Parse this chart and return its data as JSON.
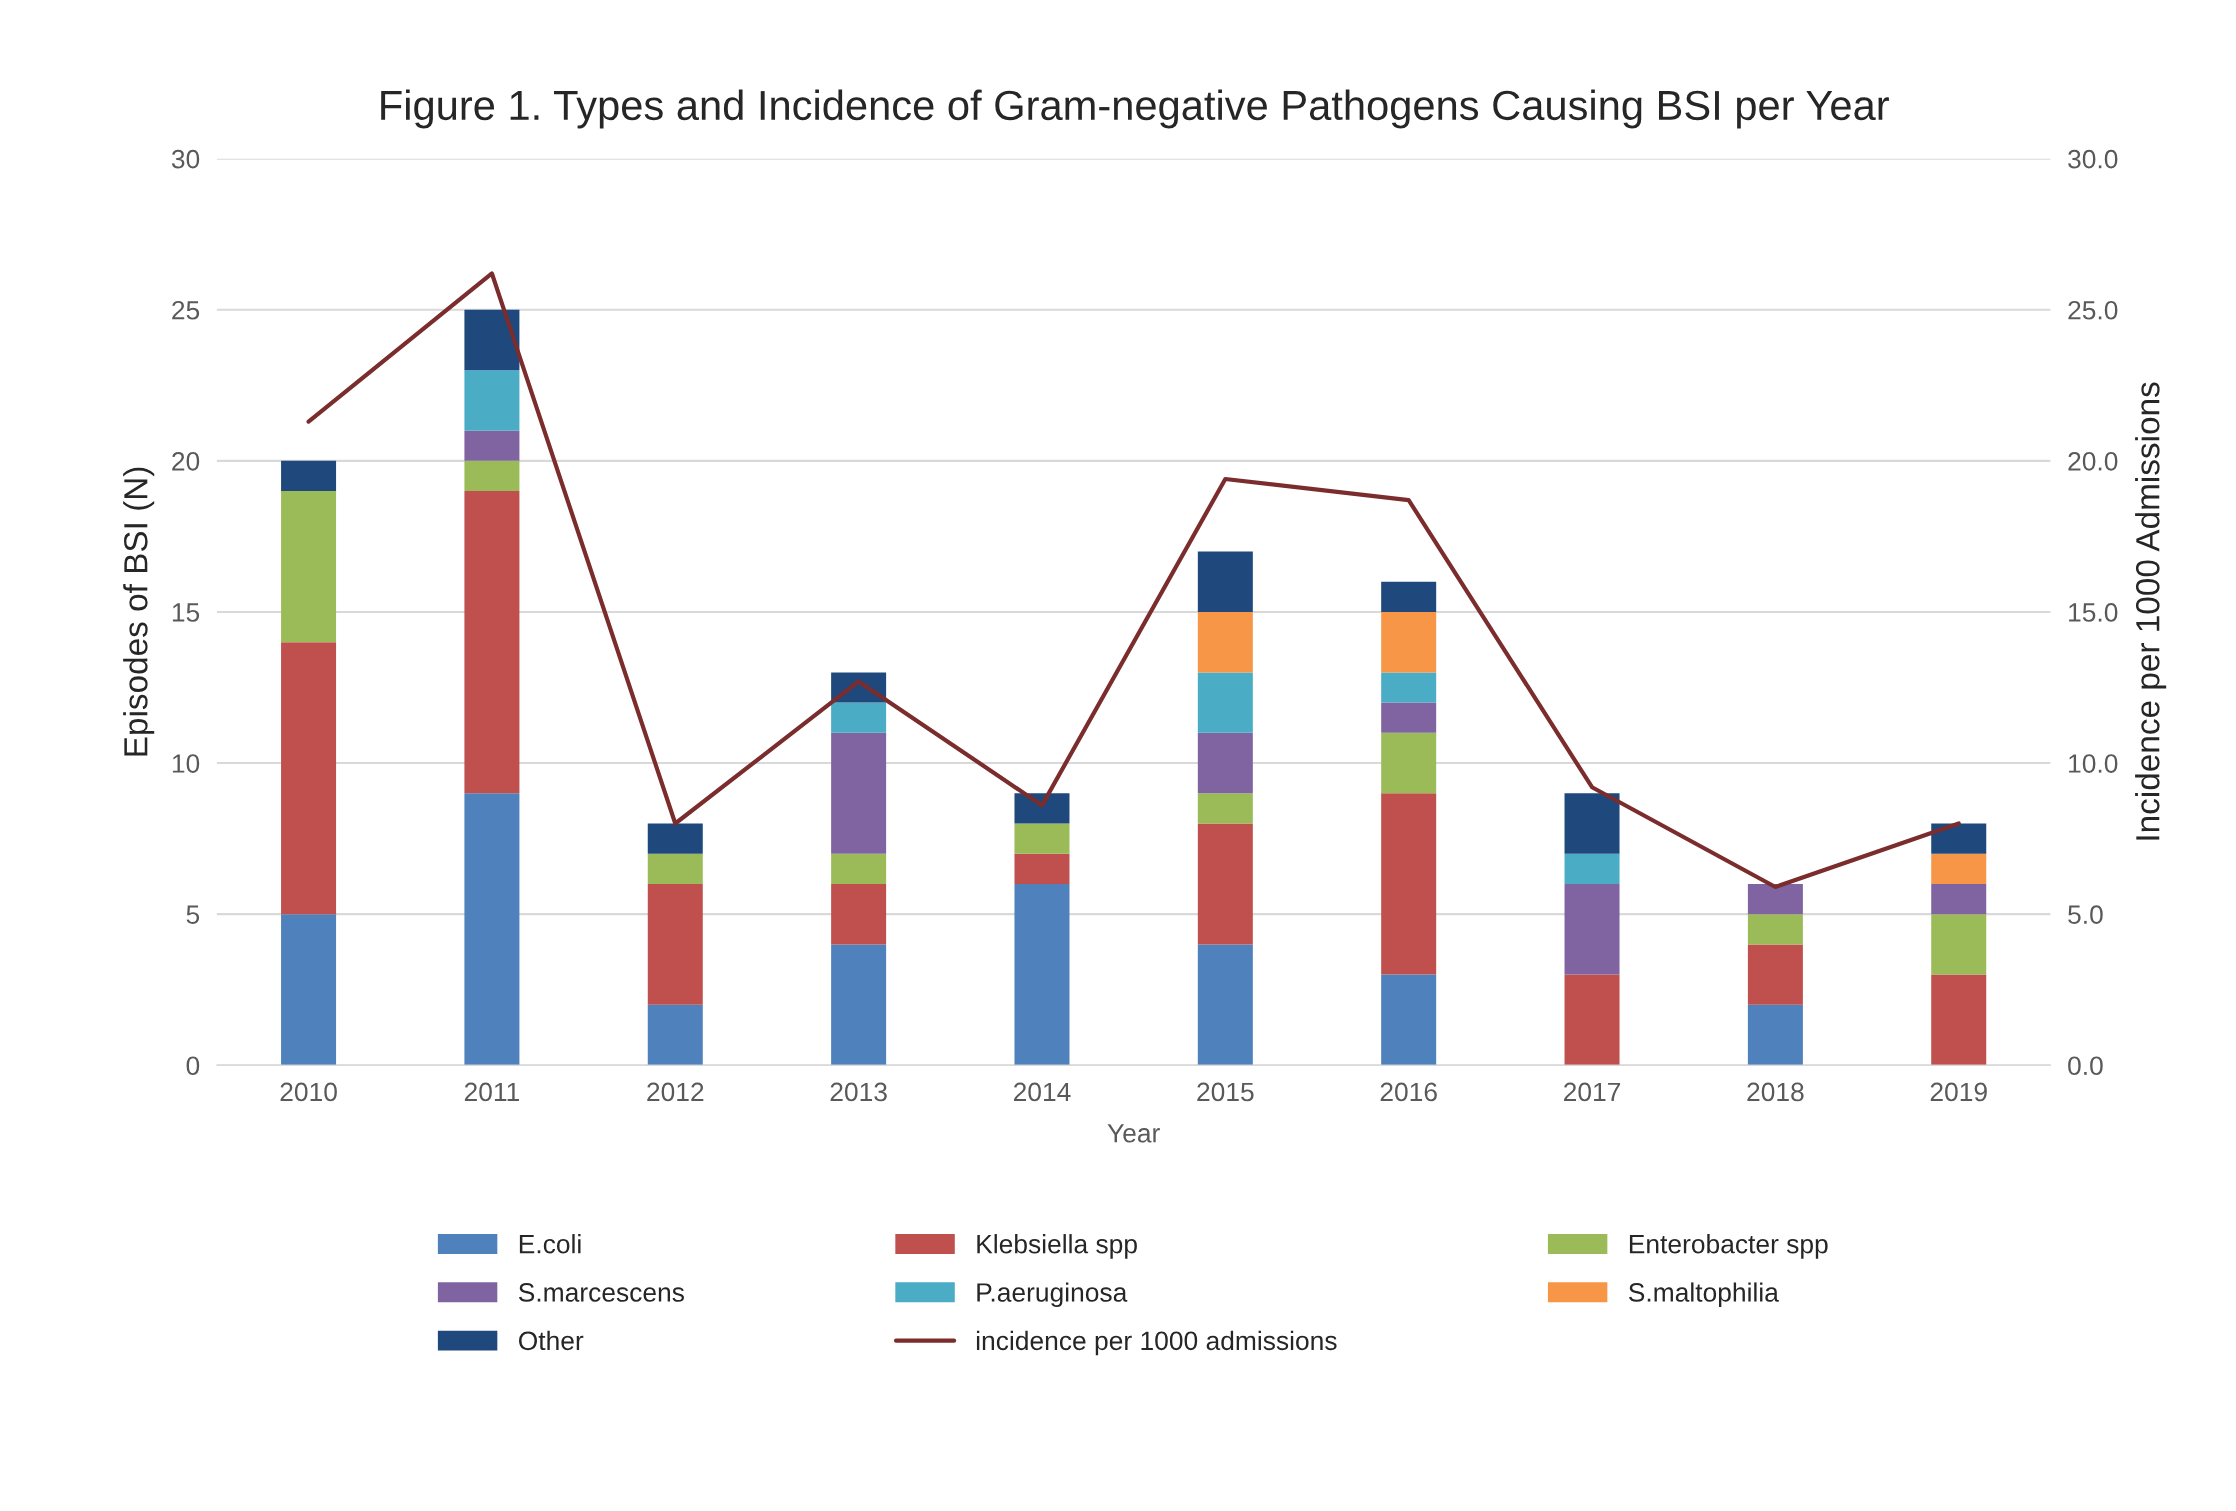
{
  "chart_data": {
    "type": "bar",
    "stacked": true,
    "title": "Figure 1. Types and Incidence of Gram-negative Pathogens Causing BSI per Year",
    "xlabel": "Year",
    "ylabel": "Episodes of BSI (N)",
    "y2label": "Incidence per 1000 Admissions",
    "categories": [
      "2010",
      "2011",
      "2012",
      "2013",
      "2014",
      "2015",
      "2016",
      "2017",
      "2018",
      "2019"
    ],
    "series": [
      {
        "name": "E.coli",
        "color": "#4f81bd",
        "values": [
          5,
          9,
          2,
          4,
          6,
          4,
          3,
          0,
          2,
          0
        ]
      },
      {
        "name": "Klebsiella spp",
        "color": "#c0504d",
        "values": [
          9,
          10,
          4,
          2,
          1,
          4,
          6,
          3,
          2,
          3
        ]
      },
      {
        "name": "Enterobacter spp",
        "color": "#9bbb59",
        "values": [
          5,
          1,
          1,
          1,
          1,
          1,
          2,
          0,
          1,
          2
        ]
      },
      {
        "name": "S.marcescens",
        "color": "#8064a2",
        "values": [
          0,
          1,
          0,
          4,
          0,
          2,
          1,
          3,
          1,
          1
        ]
      },
      {
        "name": "P.aeruginosa",
        "color": "#4bacc6",
        "values": [
          0,
          2,
          0,
          1,
          0,
          2,
          1,
          1,
          0,
          0
        ]
      },
      {
        "name": "S.maltophilia",
        "color": "#f79646",
        "values": [
          0,
          0,
          0,
          0,
          0,
          2,
          2,
          0,
          0,
          1
        ]
      },
      {
        "name": "Other",
        "color": "#1f497d",
        "values": [
          1,
          2,
          1,
          1,
          1,
          2,
          1,
          2,
          0,
          1
        ]
      },
      {
        "name": "incidence per 1000 admissions",
        "type": "line",
        "axis": "y2",
        "color": "#7b2c2c",
        "values": [
          21.3,
          26.2,
          8.0,
          12.7,
          8.6,
          19.4,
          18.7,
          9.2,
          5.9,
          8.0
        ]
      }
    ],
    "ylim": [
      0,
      30
    ],
    "yticks": [
      0,
      5,
      10,
      15,
      20,
      25,
      30
    ],
    "y2lim": [
      0,
      30
    ],
    "y2ticks": [
      {
        "value": 0,
        "label": "0.0"
      },
      {
        "value": 5,
        "label": "5.0"
      },
      {
        "value": 10,
        "label": "10.0"
      },
      {
        "value": 15,
        "label": "15.0"
      },
      {
        "value": 20,
        "label": "20.0"
      },
      {
        "value": 25,
        "label": "25.0"
      },
      {
        "value": 30,
        "label": "30.0"
      }
    ],
    "grid": "y",
    "legend": "bottom"
  }
}
